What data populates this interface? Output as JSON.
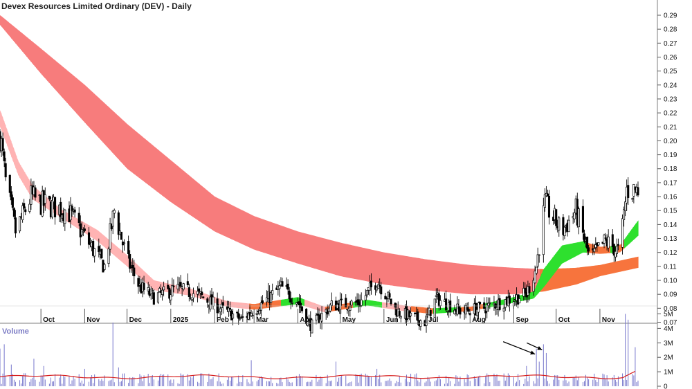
{
  "chart_data": {
    "type": "candlestick",
    "title": "Devex Resources Limited Ordinary (DEV) - Daily",
    "colors": {
      "long_band": "#f77c7c",
      "short_band_down": "#ffb3b3",
      "short_band_up": "#2ee02e",
      "short_band_mixed": "#f7743d",
      "long_band_up": "#f7743d",
      "volume_bar": "#7777cc",
      "volume_ma": "#d62020",
      "candle": "#000000"
    },
    "price_axis": {
      "ylim": [
        0.06,
        0.3
      ],
      "ticks": [
        "0.29",
        "0.28",
        "0.27",
        "0.26",
        "0.25",
        "0.24",
        "0.23",
        "0.22",
        "0.21",
        "0.20",
        "0.19",
        "0.18",
        "0.17",
        "0.16",
        "0.15",
        "0.14",
        "0.13",
        "0.12",
        "0.11",
        "0.10",
        "0.09",
        "0.08",
        "0.07"
      ]
    },
    "x_axis": {
      "start": "2024-09-02",
      "end": "2025-11-28",
      "month_labels": [
        {
          "date": "2024-10-01",
          "label": "Oct"
        },
        {
          "date": "2024-11-01",
          "label": "Nov"
        },
        {
          "date": "2024-12-01",
          "label": "Dec"
        },
        {
          "date": "2025-01-01",
          "label": "2025"
        },
        {
          "date": "2025-02-01",
          "label": "Feb"
        },
        {
          "date": "2025-03-01",
          "label": "Mar"
        },
        {
          "date": "2025-04-01",
          "label": "Apr"
        },
        {
          "date": "2025-05-01",
          "label": "May"
        },
        {
          "date": "2025-06-01",
          "label": "Jun"
        },
        {
          "date": "2025-07-01",
          "label": "Jul"
        },
        {
          "date": "2025-08-01",
          "label": "Aug"
        },
        {
          "date": "2025-09-01",
          "label": "Sep"
        },
        {
          "date": "2025-10-01",
          "label": "Oct"
        },
        {
          "date": "2025-11-01",
          "label": "Nov"
        }
      ]
    },
    "price_anchors": [
      {
        "date": "2024-09-02",
        "close": 0.205
      },
      {
        "date": "2024-09-06",
        "close": 0.17
      },
      {
        "date": "2024-09-13",
        "close": 0.135
      },
      {
        "date": "2024-09-24",
        "close": 0.16
      },
      {
        "date": "2024-10-01",
        "close": 0.155
      },
      {
        "date": "2024-10-20",
        "close": 0.15
      },
      {
        "date": "2024-11-05",
        "close": 0.125
      },
      {
        "date": "2024-11-15",
        "close": 0.11
      },
      {
        "date": "2024-11-22",
        "close": 0.15
      },
      {
        "date": "2024-12-01",
        "close": 0.115
      },
      {
        "date": "2024-12-10",
        "close": 0.095
      },
      {
        "date": "2024-12-20",
        "close": 0.088
      },
      {
        "date": "2025-01-05",
        "close": 0.094
      },
      {
        "date": "2025-01-20",
        "close": 0.09
      },
      {
        "date": "2025-02-05",
        "close": 0.08
      },
      {
        "date": "2025-02-20",
        "close": 0.072
      },
      {
        "date": "2025-03-05",
        "close": 0.082
      },
      {
        "date": "2025-03-20",
        "close": 0.095
      },
      {
        "date": "2025-04-01",
        "close": 0.085
      },
      {
        "date": "2025-04-10",
        "close": 0.067
      },
      {
        "date": "2025-04-25",
        "close": 0.082
      },
      {
        "date": "2025-05-15",
        "close": 0.084
      },
      {
        "date": "2025-05-27",
        "close": 0.1
      },
      {
        "date": "2025-06-10",
        "close": 0.078
      },
      {
        "date": "2025-06-30",
        "close": 0.07
      },
      {
        "date": "2025-07-08",
        "close": 0.087
      },
      {
        "date": "2025-07-25",
        "close": 0.078
      },
      {
        "date": "2025-08-10",
        "close": 0.08
      },
      {
        "date": "2025-08-28",
        "close": 0.086
      },
      {
        "date": "2025-09-10",
        "close": 0.09
      },
      {
        "date": "2025-09-17",
        "close": 0.11
      },
      {
        "date": "2025-09-23",
        "close": 0.155
      },
      {
        "date": "2025-10-05",
        "close": 0.135
      },
      {
        "date": "2025-10-15",
        "close": 0.15
      },
      {
        "date": "2025-10-25",
        "close": 0.115
      },
      {
        "date": "2025-11-05",
        "close": 0.128
      },
      {
        "date": "2025-11-15",
        "close": 0.12
      },
      {
        "date": "2025-11-20",
        "close": 0.165
      },
      {
        "date": "2025-11-28",
        "close": 0.165
      }
    ],
    "long_band": [
      {
        "date": "2024-09-02",
        "top": 0.29,
        "bottom": 0.283
      },
      {
        "date": "2024-10-01",
        "top": 0.266,
        "bottom": 0.248
      },
      {
        "date": "2024-11-01",
        "top": 0.24,
        "bottom": 0.213
      },
      {
        "date": "2024-12-01",
        "top": 0.212,
        "bottom": 0.18
      },
      {
        "date": "2025-01-01",
        "top": 0.186,
        "bottom": 0.156
      },
      {
        "date": "2025-02-01",
        "top": 0.16,
        "bottom": 0.135
      },
      {
        "date": "2025-03-01",
        "top": 0.146,
        "bottom": 0.122
      },
      {
        "date": "2025-04-01",
        "top": 0.135,
        "bottom": 0.112
      },
      {
        "date": "2025-05-01",
        "top": 0.127,
        "bottom": 0.103
      },
      {
        "date": "2025-06-01",
        "top": 0.12,
        "bottom": 0.097
      },
      {
        "date": "2025-07-01",
        "top": 0.115,
        "bottom": 0.093
      },
      {
        "date": "2025-08-01",
        "top": 0.111,
        "bottom": 0.09
      },
      {
        "date": "2025-09-01",
        "top": 0.109,
        "bottom": 0.09
      },
      {
        "date": "2025-09-22",
        "top": 0.108,
        "bottom": 0.092
      },
      {
        "date": "2025-10-15",
        "top": 0.109,
        "bottom": 0.097
      },
      {
        "date": "2025-11-01",
        "top": 0.111,
        "bottom": 0.103
      },
      {
        "date": "2025-11-28",
        "top": 0.117,
        "bottom": 0.109
      }
    ],
    "short_band": [
      {
        "date": "2024-09-02",
        "top": 0.222,
        "bottom": 0.21
      },
      {
        "date": "2024-09-15",
        "top": 0.185,
        "bottom": 0.175
      },
      {
        "date": "2024-09-25",
        "top": 0.168,
        "bottom": 0.158
      },
      {
        "date": "2024-10-15",
        "top": 0.151,
        "bottom": 0.145
      },
      {
        "date": "2024-11-10",
        "top": 0.136,
        "bottom": 0.128
      },
      {
        "date": "2024-12-01",
        "top": 0.118,
        "bottom": 0.11
      },
      {
        "date": "2024-12-20",
        "top": 0.1,
        "bottom": 0.093
      },
      {
        "date": "2025-01-15",
        "top": 0.094,
        "bottom": 0.089
      },
      {
        "date": "2025-02-10",
        "top": 0.085,
        "bottom": 0.081
      },
      {
        "date": "2025-03-01",
        "top": 0.083,
        "bottom": 0.079
      },
      {
        "date": "2025-04-01",
        "top": 0.088,
        "bottom": 0.083
      },
      {
        "date": "2025-04-20",
        "top": 0.081,
        "bottom": 0.077
      },
      {
        "date": "2025-05-20",
        "top": 0.086,
        "bottom": 0.082
      },
      {
        "date": "2025-06-15",
        "top": 0.082,
        "bottom": 0.078
      },
      {
        "date": "2025-07-05",
        "top": 0.08,
        "bottom": 0.076
      },
      {
        "date": "2025-08-01",
        "top": 0.081,
        "bottom": 0.078
      },
      {
        "date": "2025-09-01",
        "top": 0.088,
        "bottom": 0.084
      },
      {
        "date": "2025-09-15",
        "top": 0.092,
        "bottom": 0.087
      },
      {
        "date": "2025-09-22",
        "top": 0.108,
        "bottom": 0.095
      },
      {
        "date": "2025-10-05",
        "top": 0.125,
        "bottom": 0.112
      },
      {
        "date": "2025-10-20",
        "top": 0.128,
        "bottom": 0.12
      },
      {
        "date": "2025-11-01",
        "top": 0.124,
        "bottom": 0.119
      },
      {
        "date": "2025-11-15",
        "top": 0.125,
        "bottom": 0.12
      },
      {
        "date": "2025-11-28",
        "top": 0.143,
        "bottom": 0.132
      }
    ],
    "volume_axis": {
      "ylim": [
        0,
        5000000
      ],
      "ticks": [
        "5M",
        "4M",
        "3M",
        "2M",
        "1M",
        "0"
      ],
      "label": "Volume"
    },
    "volume_spikes": [
      {
        "date": "2024-09-02",
        "value": 2600000
      },
      {
        "date": "2024-09-05",
        "value": 2900000
      },
      {
        "date": "2024-09-10",
        "value": 1500000
      },
      {
        "date": "2024-09-26",
        "value": 1900000
      },
      {
        "date": "2024-10-03",
        "value": 1400000
      },
      {
        "date": "2024-11-01",
        "value": 1200000
      },
      {
        "date": "2024-11-21",
        "value": 4400000
      },
      {
        "date": "2024-11-25",
        "value": 1300000
      },
      {
        "date": "2025-02-27",
        "value": 1800000
      },
      {
        "date": "2025-04-28",
        "value": 1700000
      },
      {
        "date": "2025-05-27",
        "value": 1200000
      },
      {
        "date": "2025-09-10",
        "value": 1400000
      },
      {
        "date": "2025-09-17",
        "value": 2600000
      },
      {
        "date": "2025-09-19",
        "value": 1700000
      },
      {
        "date": "2025-09-22",
        "value": 2900000
      },
      {
        "date": "2025-09-24",
        "value": 2300000
      },
      {
        "date": "2025-11-19",
        "value": 5000000
      },
      {
        "date": "2025-11-21",
        "value": 4600000
      },
      {
        "date": "2025-11-26",
        "value": 2700000
      }
    ],
    "volume_ma_level": 650000,
    "annotations": [
      {
        "type": "arrow",
        "target_date": "2025-09-17",
        "target_value": 2600000
      },
      {
        "type": "arrow",
        "target_date": "2025-09-22",
        "target_value": 2900000
      }
    ]
  }
}
